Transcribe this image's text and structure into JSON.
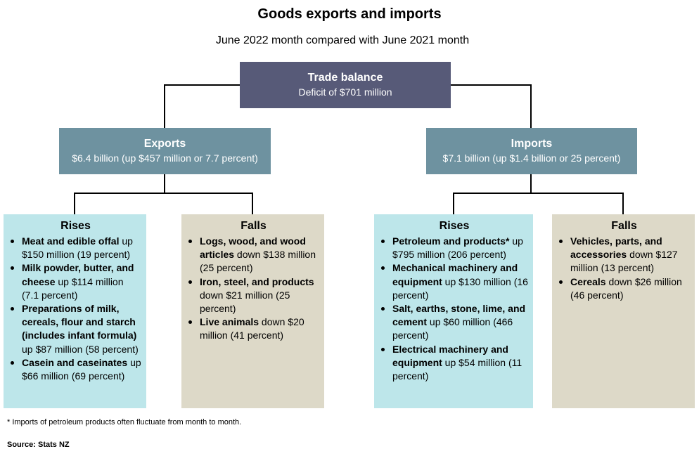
{
  "title": "Goods exports and imports",
  "subtitle": "June 2022 month compared with June 2021 month",
  "trade_balance": {
    "heading": "Trade balance",
    "value": "Deficit of $701 million"
  },
  "exports": {
    "heading": "Exports",
    "value": "$6.4 billion (up $457 million or 7.7 percent)"
  },
  "imports": {
    "heading": "Imports",
    "value": "$7.1 billion (up $1.4 billion or 25 percent)"
  },
  "export_rises": {
    "heading": "Rises",
    "items": [
      {
        "bold": "Meat and edible offal",
        "text": " up $150 million (19 percent)"
      },
      {
        "bold": "Milk powder, butter, and cheese",
        "text": " up $114 million (7.1 percent)"
      },
      {
        "bold": "Preparations of milk, cereals, flour and starch (includes infant formula)",
        "text": " up $87 million (58 percent)"
      },
      {
        "bold": "Casein and caseinates",
        "text": " up $66 million (69 percent)"
      }
    ]
  },
  "export_falls": {
    "heading": "Falls",
    "items": [
      {
        "bold": "Logs, wood, and wood articles",
        "text": " down $138 million (25 percent)"
      },
      {
        "bold": "Iron, steel, and products",
        "text": " down $21 million (25 percent)"
      },
      {
        "bold": "Live animals",
        "text": " down $20 million (41 percent)"
      }
    ]
  },
  "import_rises": {
    "heading": "Rises",
    "items": [
      {
        "bold": "Petroleum and products*",
        "text": " up $795 million (206 percent)"
      },
      {
        "bold": "Mechanical machinery and equipment",
        "text": " up $130 million (16 percent)"
      },
      {
        "bold": "Salt, earths, stone, lime, and cement",
        "text": " up $60 million (466 percent)"
      },
      {
        "bold": "Electrical machinery and equipment",
        "text": " up $54 million (11 percent)"
      }
    ]
  },
  "import_falls": {
    "heading": "Falls",
    "items": [
      {
        "bold": "Vehicles, parts, and accessories",
        "text": " down $127 million (13 percent)"
      },
      {
        "bold": "Cereals",
        "text": " down $26 million (46 percent)"
      }
    ]
  },
  "footnote": "* Imports of petroleum products often fluctuate from month to month.",
  "source": "Source: Stats NZ",
  "colors": {
    "trade_balance_box": "#575a78",
    "category_box": "#6e92a0",
    "rises_box": "#bde6ea",
    "falls_box": "#ddd9c8",
    "connector": "#000000"
  }
}
